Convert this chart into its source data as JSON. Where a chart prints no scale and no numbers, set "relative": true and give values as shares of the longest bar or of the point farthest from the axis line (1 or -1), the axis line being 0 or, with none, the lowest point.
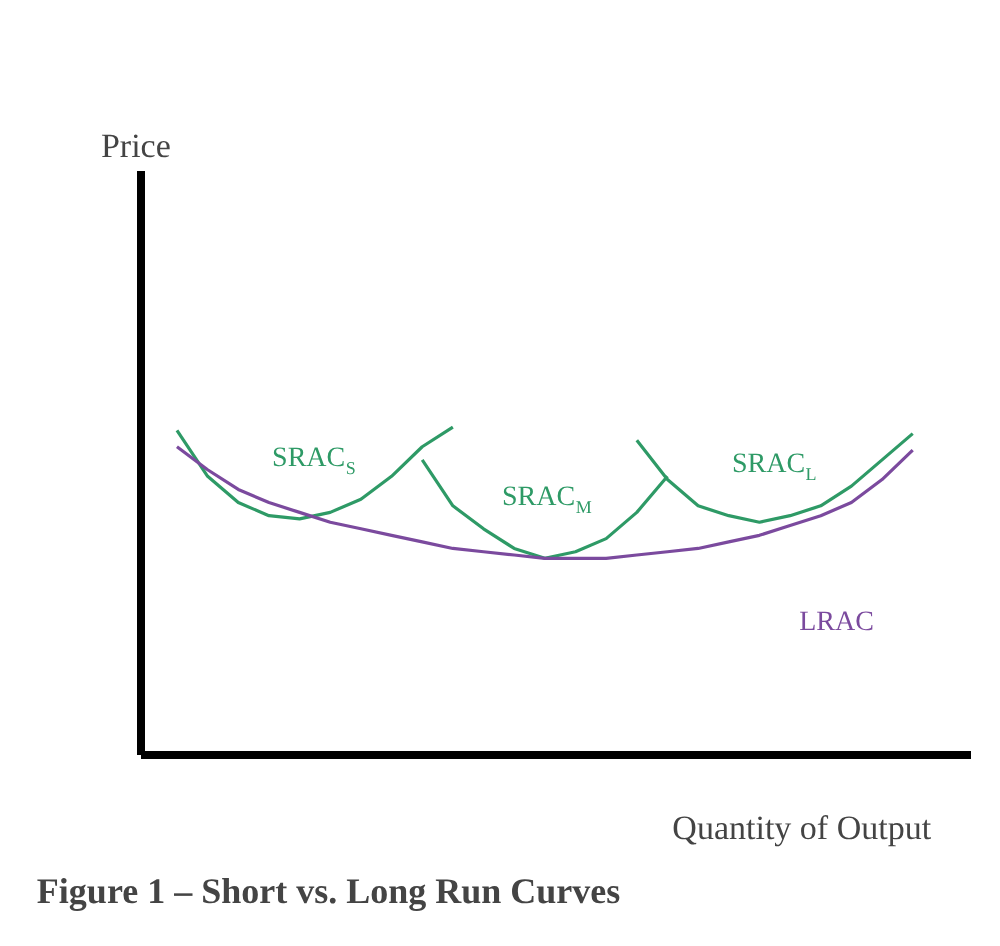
{
  "chart_data": {
    "type": "line",
    "title": "Figure 1 – Short vs. Long Run Curves",
    "xlabel": "Quantity of Output",
    "annotations": [
      "Price"
    ],
    "relative": true,
    "categories": [
      null,
      null,
      null,
      null,
      null,
      null,
      null,
      null,
      null,
      null,
      null,
      null,
      null,
      null,
      null,
      null,
      null,
      null,
      null,
      null,
      null,
      null,
      null,
      null,
      null
    ],
    "series": [
      {
        "name": "SRAC$_{S}$",
        "color": "#2e9a66",
        "values": [
          0.99,
          0.85,
          0.77,
          0.73,
          0.72,
          0.74,
          0.78,
          0.85,
          0.94,
          1.0,
          null,
          null,
          null,
          null,
          null,
          null,
          null,
          null,
          null,
          null,
          null,
          null,
          null,
          null,
          null
        ]
      },
      {
        "name": "SRAC$_{M}$",
        "color": "#2e9a66",
        "values": [
          null,
          null,
          null,
          null,
          null,
          null,
          null,
          null,
          0.9,
          0.76,
          0.69,
          0.63,
          0.6,
          0.62,
          0.66,
          0.74,
          0.85,
          null,
          null,
          null,
          null,
          null,
          null,
          null,
          null
        ]
      },
      {
        "name": "SRAC$_{L}$",
        "color": "#2e9a66",
        "values": [
          null,
          null,
          null,
          null,
          null,
          null,
          null,
          null,
          null,
          null,
          null,
          null,
          null,
          null,
          null,
          0.96,
          0.84,
          0.76,
          0.73,
          0.71,
          0.73,
          0.76,
          0.82,
          0.9,
          0.98
        ]
      },
      {
        "name": "LRAC",
        "color": "#7b4a9e",
        "values": [
          0.94,
          0.87,
          0.81,
          0.77,
          0.74,
          0.71,
          0.69,
          0.67,
          0.65,
          0.63,
          0.62,
          0.61,
          0.6,
          0.6,
          0.6,
          0.61,
          0.62,
          0.63,
          0.65,
          0.67,
          0.7,
          0.73,
          0.77,
          0.84,
          0.93
        ]
      }
    ],
    "grid": false,
    "legend": false
  }
}
